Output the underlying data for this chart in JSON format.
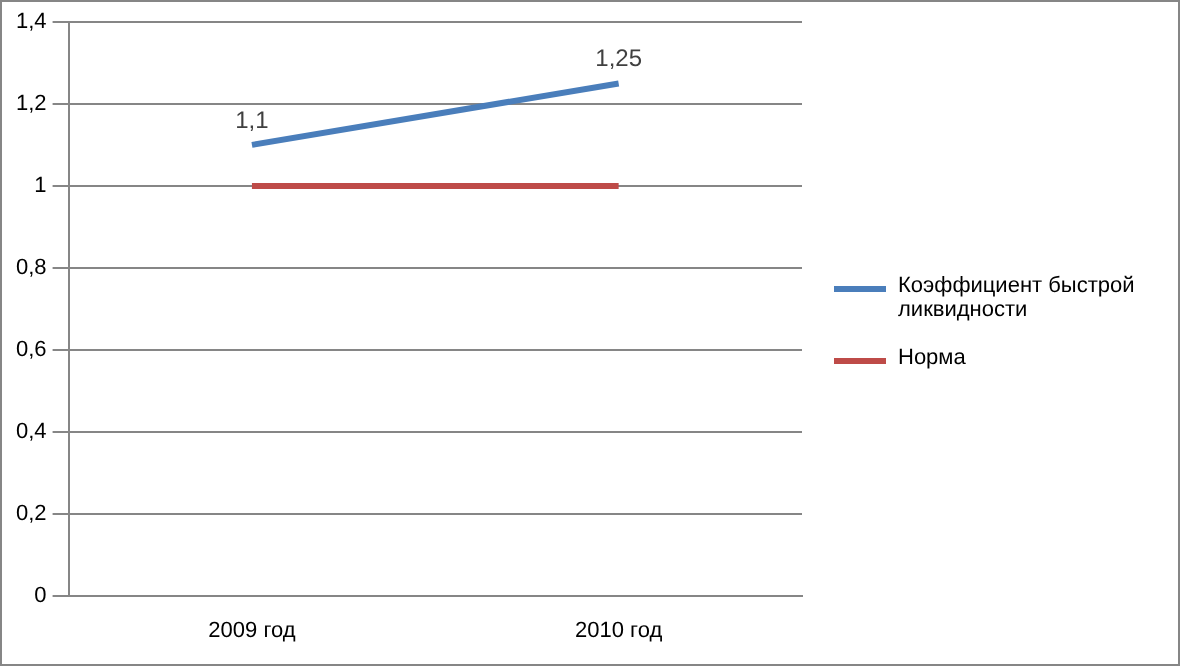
{
  "chart_data": {
    "type": "line",
    "categories": [
      "2009 год",
      "2010 год"
    ],
    "series": [
      {
        "name": "Коэффициент быстрой ликвидности",
        "color": "#4a7ebb",
        "values": [
          1.1,
          1.25
        ],
        "value_labels": [
          "1,1",
          "1,25"
        ]
      },
      {
        "name": "Норма",
        "color": "#be4b48",
        "values": [
          1,
          1
        ]
      }
    ],
    "ylim": [
      0,
      1.4
    ],
    "yticks": [
      0,
      {
        "value": 0.2,
        "label": "0,2"
      },
      {
        "value": 0.4,
        "label": "0,4"
      },
      {
        "value": 0.6,
        "label": "0,6"
      },
      {
        "value": 0.8,
        "label": "0,8"
      },
      1,
      {
        "value": 1.2,
        "label": "1,2"
      },
      {
        "value": 1.4,
        "label": "1,4"
      }
    ],
    "grid": "y",
    "legend": "right",
    "marker": "none",
    "line_style": "solid"
  }
}
